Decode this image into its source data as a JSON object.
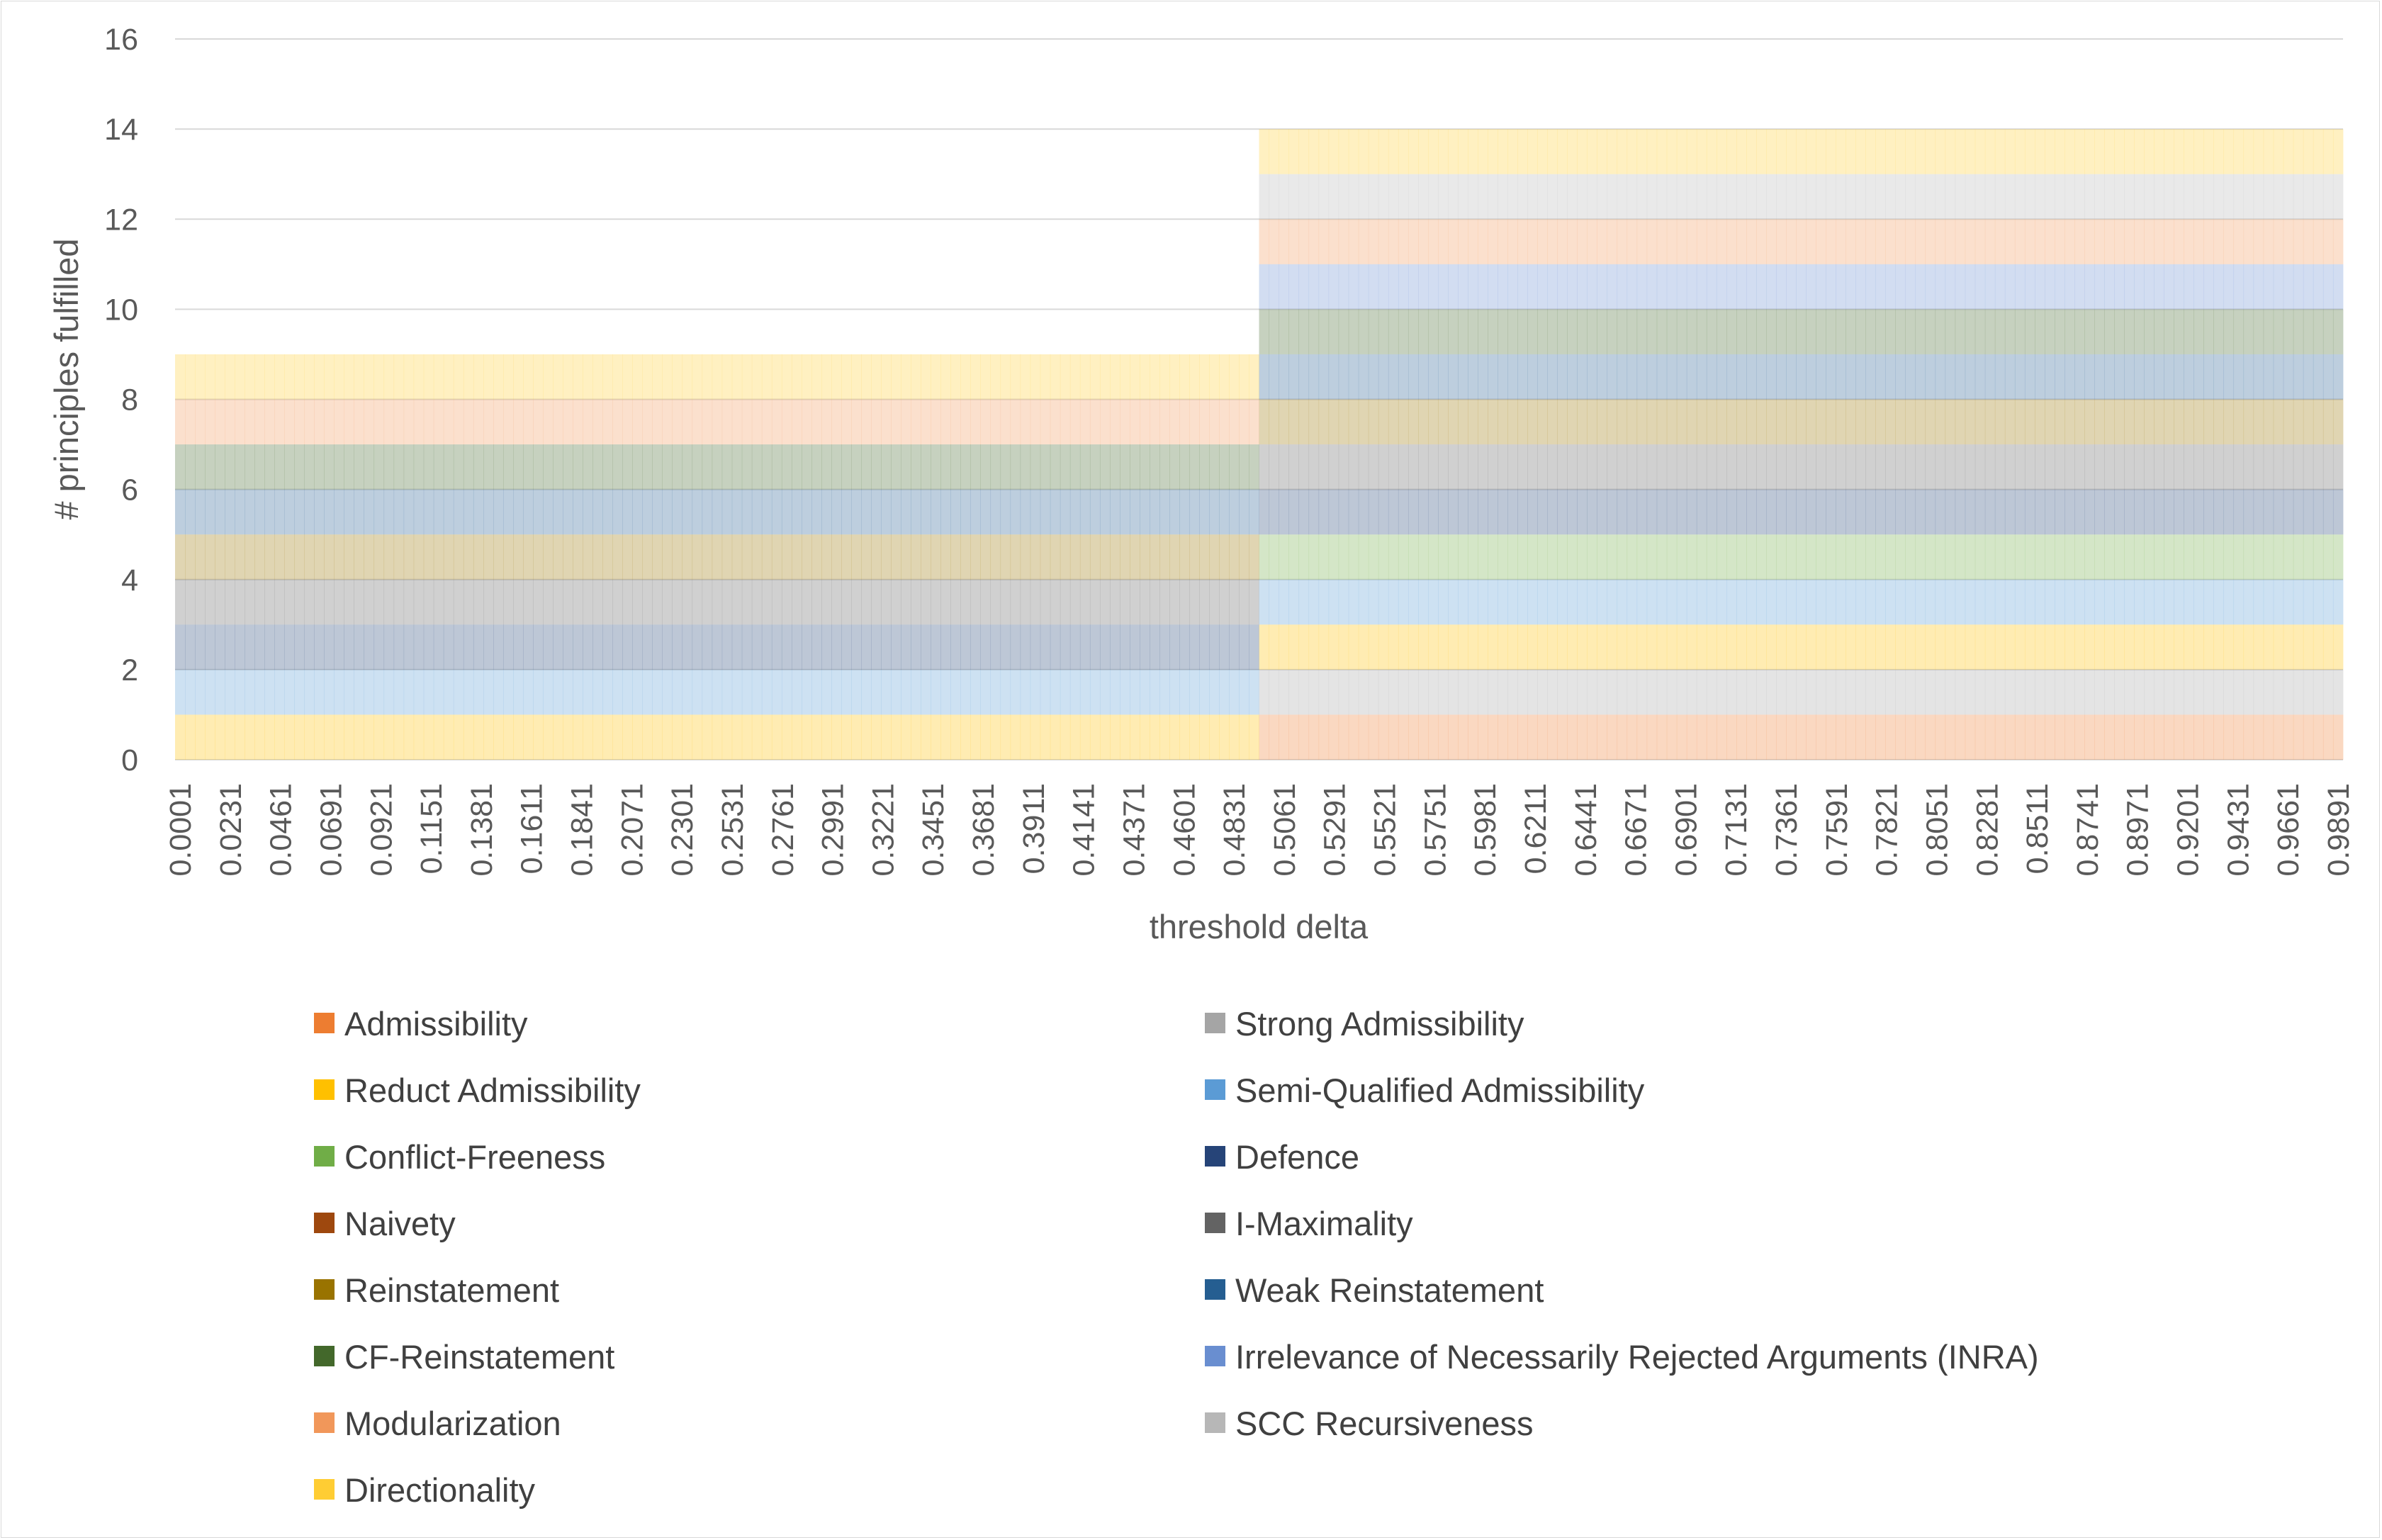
{
  "chart_data": {
    "type": "bar",
    "stacked": true,
    "title": "",
    "xlabel": "threshold delta",
    "ylabel": "# principles fulfilled",
    "ylim": [
      0,
      16
    ],
    "yticks": [
      0,
      2,
      4,
      6,
      8,
      10,
      12,
      14,
      16
    ],
    "grid": true,
    "legend_position": "bottom",
    "x_tick_labels": [
      "0.0001",
      "0.0231",
      "0.0461",
      "0.0691",
      "0.0921",
      "0.1151",
      "0.1381",
      "0.1611",
      "0.1841",
      "0.2071",
      "0.2301",
      "0.2531",
      "0.2761",
      "0.2991",
      "0.3221",
      "0.3451",
      "0.3681",
      "0.3911",
      "0.4141",
      "0.4371",
      "0.4601",
      "0.4831",
      "0.5061",
      "0.5291",
      "0.5521",
      "0.5751",
      "0.5981",
      "0.6211",
      "0.6441",
      "0.6671",
      "0.6901",
      "0.7131",
      "0.7361",
      "0.7591",
      "0.7821",
      "0.8051",
      "0.8281",
      "0.8511",
      "0.8741",
      "0.8971",
      "0.9201",
      "0.9431",
      "0.9661",
      "0.9891"
    ],
    "x_range": [
      0.0001,
      0.9991
    ],
    "x_step": 0.0046,
    "threshold_switch": 0.5001,
    "series": [
      {
        "name": "Admissibility",
        "color": "#ED7D31",
        "fulfilled_below": 0,
        "fulfilled_above": 1
      },
      {
        "name": "Strong Admissibility",
        "color": "#A5A5A5",
        "fulfilled_below": 0,
        "fulfilled_above": 1
      },
      {
        "name": "Reduct Admissibility",
        "color": "#FFC000",
        "fulfilled_below": 1,
        "fulfilled_above": 1
      },
      {
        "name": "Semi-Qualified Admissibility",
        "color": "#5B9BD5",
        "fulfilled_below": 1,
        "fulfilled_above": 1
      },
      {
        "name": "Conflict-Freeness",
        "color": "#70AD47",
        "fulfilled_below": 0,
        "fulfilled_above": 1
      },
      {
        "name": "Defence",
        "color": "#264478",
        "fulfilled_below": 1,
        "fulfilled_above": 1
      },
      {
        "name": "Naivety",
        "color": "#9E480E",
        "fulfilled_below": 0,
        "fulfilled_above": 0
      },
      {
        "name": "I-Maximality",
        "color": "#636363",
        "fulfilled_below": 1,
        "fulfilled_above": 1
      },
      {
        "name": "Reinstatement",
        "color": "#997300",
        "fulfilled_below": 1,
        "fulfilled_above": 1
      },
      {
        "name": "Weak Reinstatement",
        "color": "#255E91",
        "fulfilled_below": 1,
        "fulfilled_above": 1
      },
      {
        "name": "CF-Reinstatement",
        "color": "#43682B",
        "fulfilled_below": 1,
        "fulfilled_above": 1
      },
      {
        "name": "Irrelevance of Necessarily Rejected Arguments (INRA)",
        "color": "#698ED0",
        "fulfilled_below": 0,
        "fulfilled_above": 1
      },
      {
        "name": "Modularization",
        "color": "#F1975A",
        "fulfilled_below": 1,
        "fulfilled_above": 1
      },
      {
        "name": "SCC Recursiveness",
        "color": "#B7B7B7",
        "fulfilled_below": 0,
        "fulfilled_above": 1
      },
      {
        "name": "Directionality",
        "color": "#FFCD33",
        "fulfilled_below": 1,
        "fulfilled_above": 1
      }
    ]
  }
}
